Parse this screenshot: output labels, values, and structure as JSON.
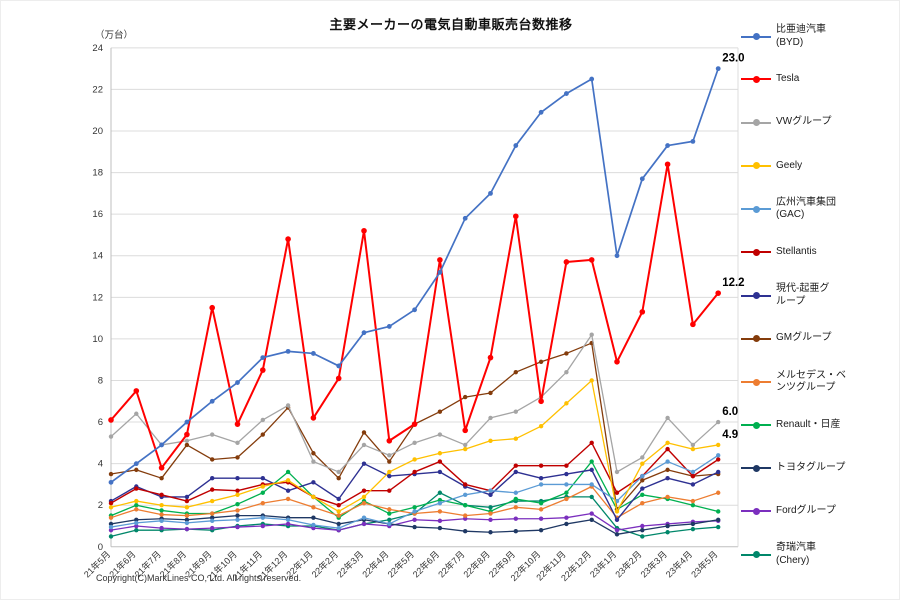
{
  "chart_data": {
    "type": "line",
    "title": "主要メーカーの電気自動車販売台数推移",
    "y_axis_unit_label": "（万台）",
    "copyright": "Copyright(C)MarkLines CO, Ltd. All rights reserved.",
    "ylim": [
      0,
      24
    ],
    "y_ticks": [
      0,
      2,
      4,
      6,
      8,
      10,
      12,
      14,
      16,
      18,
      20,
      22,
      24
    ],
    "grid": true,
    "legend_position": "right",
    "categories": [
      "21年5月",
      "21年6月",
      "21年7月",
      "21年8月",
      "21年9月",
      "21年10月",
      "21年11月",
      "21年12月",
      "22年1月",
      "22年2月",
      "22年3月",
      "22年4月",
      "22年5月",
      "22年6月",
      "22年7月",
      "22年8月",
      "22年9月",
      "22年10月",
      "22年11月",
      "22年12月",
      "23年1月",
      "23年2月",
      "23年3月",
      "23年4月",
      "23年5月"
    ],
    "series": [
      {
        "name": "比亜迪汽車(BYD)",
        "legend_lines": [
          "比亜迪汽車",
          "(BYD)"
        ],
        "color": "#4472C4",
        "width": 1.7,
        "marker": 2.4,
        "values": [
          3.1,
          4.0,
          4.9,
          6.0,
          7.0,
          7.9,
          9.1,
          9.4,
          9.3,
          8.7,
          10.3,
          10.6,
          11.4,
          13.2,
          15.8,
          17.0,
          19.3,
          20.9,
          21.8,
          22.5,
          14.0,
          17.7,
          19.3,
          19.5,
          23.0
        ]
      },
      {
        "name": "Tesla",
        "legend_lines": [
          "Tesla"
        ],
        "color": "#FF0000",
        "width": 2.0,
        "marker": 2.8,
        "values": [
          6.1,
          7.5,
          3.8,
          5.4,
          11.5,
          5.9,
          8.5,
          14.8,
          6.2,
          8.1,
          15.2,
          5.1,
          5.9,
          13.8,
          5.6,
          9.1,
          15.9,
          7.0,
          13.7,
          13.8,
          8.9,
          11.3,
          18.4,
          10.7,
          12.2
        ]
      },
      {
        "name": "VWグループ",
        "legend_lines": [
          "VWグループ"
        ],
        "color": "#A5A5A5",
        "width": 1.3,
        "marker": 2.2,
        "values": [
          5.3,
          6.4,
          4.9,
          5.1,
          5.4,
          5.0,
          6.1,
          6.8,
          4.1,
          3.6,
          4.9,
          4.4,
          5.0,
          5.4,
          4.9,
          6.2,
          6.5,
          7.2,
          8.4,
          10.2,
          3.6,
          4.3,
          6.2,
          4.9,
          6.0
        ]
      },
      {
        "name": "Geely",
        "legend_lines": [
          "Geely"
        ],
        "color": "#FFC000",
        "width": 1.3,
        "marker": 2.2,
        "values": [
          1.9,
          2.2,
          2.0,
          1.9,
          2.2,
          2.5,
          2.9,
          3.2,
          2.4,
          1.7,
          2.4,
          3.6,
          4.2,
          4.5,
          4.7,
          5.1,
          5.2,
          5.8,
          6.9,
          8.0,
          1.7,
          4.0,
          5.0,
          4.7,
          4.9
        ]
      },
      {
        "name": "広州汽車集団(GAC)",
        "legend_lines": [
          "広州汽車集団",
          "(GAC)"
        ],
        "color": "#5B9BD5",
        "width": 1.3,
        "marker": 2.2,
        "values": [
          0.95,
          1.15,
          1.25,
          1.15,
          1.25,
          1.3,
          1.4,
          1.3,
          1.05,
          0.9,
          1.4,
          1.1,
          1.7,
          2.1,
          2.5,
          2.7,
          2.6,
          3.0,
          3.0,
          3.0,
          2.2,
          3.4,
          4.1,
          3.6,
          4.4
        ]
      },
      {
        "name": "Stellantis",
        "legend_lines": [
          "Stellantis"
        ],
        "color": "#C00000",
        "width": 1.4,
        "marker": 2.2,
        "values": [
          2.1,
          2.8,
          2.5,
          2.2,
          2.75,
          2.7,
          3.0,
          3.1,
          2.4,
          2.0,
          2.7,
          2.7,
          3.6,
          4.1,
          3.0,
          2.7,
          3.9,
          3.9,
          3.9,
          5.0,
          2.6,
          3.4,
          4.7,
          3.4,
          4.2
        ]
      },
      {
        "name": "現代-起亜グループ",
        "legend_lines": [
          "現代-起亜グ",
          "ループ"
        ],
        "color": "#2E3192",
        "width": 1.4,
        "marker": 2.2,
        "values": [
          2.2,
          2.9,
          2.4,
          2.4,
          3.3,
          3.3,
          3.3,
          2.7,
          3.1,
          2.3,
          4.0,
          3.4,
          3.5,
          3.6,
          2.9,
          2.5,
          3.6,
          3.3,
          3.5,
          3.7,
          1.3,
          2.8,
          3.3,
          3.0,
          3.6
        ]
      },
      {
        "name": "GMグループ",
        "legend_lines": [
          "GMグループ"
        ],
        "color": "#843C0C",
        "width": 1.3,
        "marker": 2.2,
        "values": [
          3.5,
          3.7,
          3.3,
          4.9,
          4.2,
          4.3,
          5.4,
          6.7,
          4.5,
          3.3,
          5.5,
          4.1,
          5.9,
          6.5,
          7.2,
          7.4,
          8.4,
          8.9,
          9.3,
          9.8,
          1.8,
          3.2,
          3.7,
          3.4,
          3.5
        ]
      },
      {
        "name": "メルセデス・ベンツグループ",
        "legend_lines": [
          "メルセデス・ベ",
          "ンツグループ"
        ],
        "color": "#ED7D31",
        "width": 1.3,
        "marker": 2.2,
        "values": [
          1.4,
          1.8,
          1.55,
          1.5,
          1.6,
          1.75,
          2.1,
          2.3,
          1.9,
          1.5,
          2.1,
          1.8,
          1.6,
          1.7,
          1.5,
          1.6,
          1.9,
          1.8,
          2.3,
          2.9,
          1.4,
          2.1,
          2.4,
          2.2,
          2.6
        ]
      },
      {
        "name": "Renault・日産",
        "legend_lines": [
          "Renault・日産"
        ],
        "color": "#00B050",
        "width": 1.3,
        "marker": 2.2,
        "values": [
          1.5,
          2.0,
          1.75,
          1.6,
          1.6,
          2.05,
          2.6,
          3.6,
          2.4,
          1.4,
          2.2,
          1.6,
          1.9,
          2.25,
          2.0,
          1.7,
          2.3,
          2.1,
          2.6,
          4.1,
          1.8,
          2.5,
          2.3,
          2.0,
          1.7
        ]
      },
      {
        "name": "トヨタグループ",
        "legend_lines": [
          "トヨタグループ"
        ],
        "color": "#1F3864",
        "width": 1.3,
        "marker": 2.2,
        "values": [
          1.1,
          1.3,
          1.35,
          1.3,
          1.4,
          1.5,
          1.5,
          1.4,
          1.4,
          1.1,
          1.3,
          1.1,
          0.95,
          0.9,
          0.75,
          0.7,
          0.75,
          0.8,
          1.1,
          1.3,
          0.6,
          0.8,
          1.0,
          1.1,
          1.3
        ]
      },
      {
        "name": "Fordグループ",
        "legend_lines": [
          "Fordグループ"
        ],
        "color": "#7B2FBE",
        "width": 1.3,
        "marker": 2.2,
        "values": [
          0.8,
          1.0,
          0.9,
          0.85,
          0.9,
          0.95,
          1.0,
          1.1,
          0.9,
          0.8,
          1.1,
          1.0,
          1.3,
          1.25,
          1.35,
          1.3,
          1.35,
          1.35,
          1.4,
          1.6,
          0.8,
          1.0,
          1.1,
          1.2,
          1.25
        ]
      },
      {
        "name": "奇瑞汽車(Chery)",
        "legend_lines": [
          "奇瑞汽車",
          "(Chery)"
        ],
        "color": "#00876A",
        "width": 1.3,
        "marker": 2.2,
        "values": [
          0.5,
          0.8,
          0.8,
          0.85,
          0.8,
          1.0,
          1.1,
          1.0,
          1.0,
          0.8,
          1.1,
          1.3,
          1.6,
          2.6,
          2.0,
          1.9,
          2.2,
          2.2,
          2.4,
          2.4,
          0.9,
          0.5,
          0.7,
          0.85,
          0.95
        ]
      }
    ],
    "annotations": [
      {
        "series_index": 0,
        "point_index": 24,
        "label": "23.0"
      },
      {
        "series_index": 1,
        "point_index": 24,
        "label": "12.2"
      },
      {
        "series_index": 2,
        "point_index": 24,
        "label": "6.0"
      },
      {
        "series_index": 3,
        "point_index": 24,
        "label": "4.9"
      }
    ]
  }
}
